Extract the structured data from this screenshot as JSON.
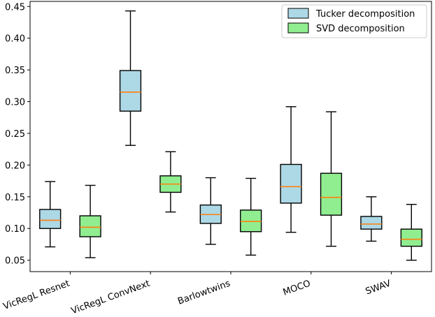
{
  "chart_data": {
    "type": "box",
    "categories": [
      "VicRegL Resnet",
      "VicRegL ConvNext",
      "Barlowtwins",
      "MOCO",
      "SWAV"
    ],
    "ylim": [
      0.032,
      0.458
    ],
    "yticks": [
      "0.05",
      "0.10",
      "0.15",
      "0.20",
      "0.25",
      "0.30",
      "0.35",
      "0.40",
      "0.45"
    ],
    "series": [
      {
        "name": "Tucker decomposition",
        "color": "#add8e6",
        "boxes": [
          {
            "whislo": 0.071,
            "q1": 0.1,
            "med": 0.113,
            "q3": 0.13,
            "whishi": 0.174
          },
          {
            "whislo": 0.231,
            "q1": 0.285,
            "med": 0.315,
            "q3": 0.349,
            "whishi": 0.443
          },
          {
            "whislo": 0.075,
            "q1": 0.108,
            "med": 0.122,
            "q3": 0.137,
            "whishi": 0.18
          },
          {
            "whislo": 0.094,
            "q1": 0.14,
            "med": 0.166,
            "q3": 0.201,
            "whishi": 0.292
          },
          {
            "whislo": 0.08,
            "q1": 0.099,
            "med": 0.107,
            "q3": 0.119,
            "whishi": 0.15
          }
        ]
      },
      {
        "name": "SVD decomposition",
        "color": "#90ee90",
        "boxes": [
          {
            "whislo": 0.054,
            "q1": 0.087,
            "med": 0.102,
            "q3": 0.12,
            "whishi": 0.168
          },
          {
            "whislo": 0.126,
            "q1": 0.157,
            "med": 0.17,
            "q3": 0.183,
            "whishi": 0.221
          },
          {
            "whislo": 0.058,
            "q1": 0.095,
            "med": 0.111,
            "q3": 0.129,
            "whishi": 0.179
          },
          {
            "whislo": 0.072,
            "q1": 0.121,
            "med": 0.149,
            "q3": 0.187,
            "whishi": 0.284
          },
          {
            "whislo": 0.05,
            "q1": 0.072,
            "med": 0.083,
            "q3": 0.099,
            "whishi": 0.138
          }
        ]
      }
    ],
    "median_color": "#ff7f0e",
    "legend_position": "top-right",
    "grid": false
  }
}
